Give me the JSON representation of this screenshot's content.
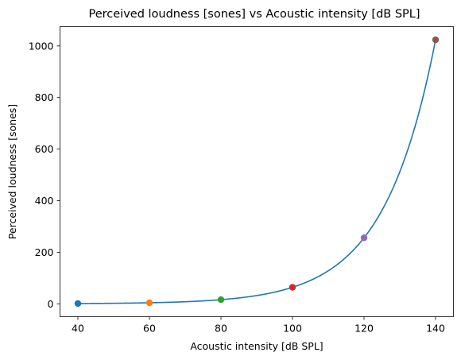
{
  "chart_data": {
    "type": "line",
    "title": "Perceived loudness [sones] vs Acoustic intensity [dB SPL]",
    "xlabel": "Acoustic intensity [dB SPL]",
    "ylabel": "Perceived loudness [sones]",
    "xlim": [
      35,
      145
    ],
    "ylim": [
      -50,
      1075
    ],
    "xticks": [
      40,
      60,
      80,
      100,
      120,
      140
    ],
    "yticks": [
      0,
      200,
      400,
      600,
      800,
      1000
    ],
    "grid": false,
    "legend": "none",
    "curve": {
      "formula": "loudness = 2^((intensity - 40) / 10)",
      "x_range": [
        40,
        140
      ],
      "color": "#1f77b4"
    },
    "points": [
      {
        "x": 40,
        "y": 1,
        "color": "#1f77b4"
      },
      {
        "x": 60,
        "y": 4,
        "color": "#ff7f0e"
      },
      {
        "x": 80,
        "y": 16,
        "color": "#2ca02c"
      },
      {
        "x": 100,
        "y": 64,
        "color": "#d62728"
      },
      {
        "x": 120,
        "y": 256,
        "color": "#9467bd"
      },
      {
        "x": 140,
        "y": 1024,
        "color": "#8c564b"
      }
    ]
  }
}
